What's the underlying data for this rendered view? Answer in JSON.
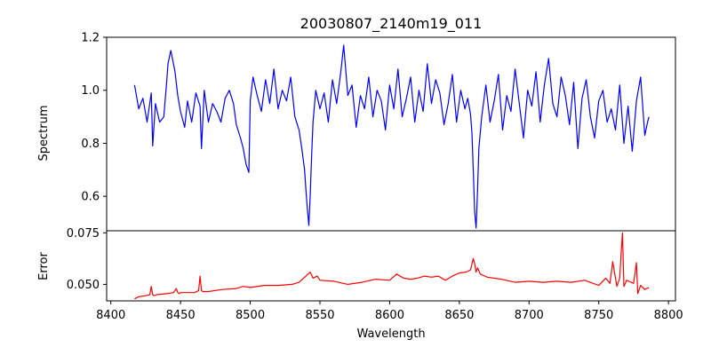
{
  "figure": {
    "title": "20030807_2140m19_011"
  },
  "chart_data": [
    {
      "type": "line",
      "panel": "top",
      "ylabel": "Spectrum",
      "xlabel": "",
      "xlim": [
        8397,
        8805
      ],
      "ylim": [
        0.47,
        1.2
      ],
      "yticks": [
        0.6,
        0.8,
        1.0,
        1.2
      ],
      "ytick_labels": [
        "0.6",
        "0.8",
        "1.0",
        "1.2"
      ],
      "series": [
        {
          "color": "#0000ff",
          "x": [
            8417,
            8420,
            8423,
            8426,
            8429,
            8430,
            8432,
            8435,
            8438,
            8440,
            8441,
            8443,
            8446,
            8448,
            8450,
            8453,
            8455,
            8458,
            8461,
            8464,
            8465,
            8467,
            8470,
            8473,
            8476,
            8479,
            8482,
            8485,
            8488,
            8490,
            8493,
            8495,
            8497,
            8499,
            8500,
            8502,
            8505,
            8508,
            8511,
            8514,
            8517,
            8520,
            8523,
            8526,
            8529,
            8532,
            8535,
            8537,
            8539,
            8540,
            8541,
            8542,
            8543,
            8544,
            8545,
            8547,
            8550,
            8553,
            8556,
            8559,
            8562,
            8565,
            8567,
            8570,
            8573,
            8576,
            8579,
            8582,
            8585,
            8588,
            8591,
            8594,
            8597,
            8600,
            8603,
            8606,
            8609,
            8612,
            8615,
            8618,
            8621,
            8624,
            8627,
            8630,
            8633,
            8636,
            8639,
            8642,
            8645,
            8648,
            8651,
            8654,
            8656,
            8658,
            8659,
            8660,
            8661,
            8662,
            8663,
            8664,
            8666,
            8669,
            8672,
            8675,
            8678,
            8681,
            8684,
            8687,
            8690,
            8693,
            8696,
            8699,
            8702,
            8705,
            8708,
            8711,
            8714,
            8717,
            8720,
            8723,
            8726,
            8729,
            8732,
            8735,
            8738,
            8741,
            8744,
            8747,
            8750,
            8753,
            8756,
            8759,
            8762,
            8765,
            8768,
            8771,
            8774,
            8777,
            8780,
            8783,
            8785,
            8786
          ],
          "y": [
            1.02,
            0.93,
            0.97,
            0.88,
            0.99,
            0.79,
            0.95,
            0.88,
            0.9,
            1.03,
            1.1,
            1.15,
            1.07,
            0.98,
            0.92,
            0.86,
            0.96,
            0.88,
            0.99,
            0.94,
            0.78,
            1.0,
            0.88,
            0.95,
            0.92,
            0.88,
            0.97,
            1.0,
            0.95,
            0.87,
            0.82,
            0.78,
            0.72,
            0.69,
            0.96,
            1.05,
            0.98,
            0.92,
            1.04,
            0.95,
            1.08,
            0.93,
            1.0,
            0.96,
            1.05,
            0.9,
            0.85,
            0.78,
            0.7,
            0.62,
            0.55,
            0.49,
            0.6,
            0.75,
            0.88,
            1.0,
            0.93,
            0.99,
            0.88,
            1.04,
            0.95,
            1.07,
            1.17,
            0.98,
            1.02,
            0.86,
            0.98,
            0.93,
            1.05,
            0.9,
            1.0,
            0.96,
            0.85,
            1.02,
            0.93,
            1.08,
            0.9,
            0.97,
            1.05,
            0.88,
            1.0,
            0.92,
            1.1,
            0.95,
            1.04,
            0.99,
            0.87,
            0.95,
            1.06,
            0.88,
            1.0,
            0.93,
            0.97,
            0.91,
            0.84,
            0.7,
            0.54,
            0.48,
            0.62,
            0.78,
            0.9,
            1.02,
            0.88,
            0.96,
            1.06,
            0.85,
            0.98,
            0.92,
            1.08,
            0.95,
            0.82,
            1.0,
            0.94,
            1.07,
            0.88,
            1.02,
            1.12,
            0.95,
            0.9,
            1.05,
            0.98,
            0.87,
            1.03,
            0.78,
            0.97,
            1.04,
            0.9,
            0.82,
            0.96,
            1.0,
            0.88,
            0.93,
            0.85,
            1.02,
            0.8,
            0.94,
            0.77,
            0.96,
            1.05,
            0.83,
            0.88,
            0.9
          ]
        }
      ]
    },
    {
      "type": "line",
      "panel": "bottom",
      "ylabel": "Error",
      "xlabel": "Wavelength",
      "xlim": [
        8397,
        8805
      ],
      "ylim": [
        0.042,
        0.076
      ],
      "yticks": [
        0.05,
        0.075
      ],
      "ytick_labels": [
        "0.050",
        "0.075"
      ],
      "xticks": [
        8400,
        8450,
        8500,
        8550,
        8600,
        8650,
        8700,
        8750,
        8800
      ],
      "xtick_labels": [
        "8400",
        "8450",
        "8500",
        "8550",
        "8600",
        "8650",
        "8700",
        "8750",
        "8800"
      ],
      "series": [
        {
          "color": "#ff0000",
          "x": [
            8417,
            8420,
            8425,
            8428,
            8429,
            8430,
            8431,
            8433,
            8440,
            8445,
            8447,
            8448,
            8449,
            8450,
            8455,
            8460,
            8463,
            8464,
            8465,
            8466,
            8470,
            8480,
            8490,
            8495,
            8500,
            8510,
            8520,
            8530,
            8535,
            8540,
            8543,
            8545,
            8548,
            8550,
            8560,
            8570,
            8580,
            8590,
            8600,
            8605,
            8610,
            8615,
            8620,
            8625,
            8630,
            8635,
            8640,
            8645,
            8650,
            8655,
            8658,
            8660,
            8661,
            8662,
            8663,
            8665,
            8670,
            8680,
            8690,
            8700,
            8710,
            8720,
            8730,
            8740,
            8750,
            8755,
            8758,
            8760,
            8763,
            8765,
            8766,
            8767,
            8768,
            8770,
            8775,
            8777,
            8778,
            8780,
            8783,
            8786
          ],
          "y": [
            0.043,
            0.044,
            0.0445,
            0.045,
            0.049,
            0.045,
            0.0445,
            0.045,
            0.0455,
            0.046,
            0.048,
            0.046,
            0.0455,
            0.046,
            0.046,
            0.046,
            0.047,
            0.054,
            0.047,
            0.0465,
            0.0465,
            0.0475,
            0.048,
            0.049,
            0.0485,
            0.0495,
            0.0495,
            0.05,
            0.051,
            0.054,
            0.056,
            0.053,
            0.054,
            0.052,
            0.0515,
            0.05,
            0.051,
            0.0525,
            0.052,
            0.055,
            0.053,
            0.0525,
            0.053,
            0.054,
            0.0535,
            0.054,
            0.052,
            0.054,
            0.0555,
            0.056,
            0.057,
            0.0625,
            0.06,
            0.056,
            0.058,
            0.055,
            0.0535,
            0.0525,
            0.051,
            0.0515,
            0.051,
            0.0515,
            0.051,
            0.052,
            0.0495,
            0.053,
            0.0505,
            0.061,
            0.049,
            0.053,
            0.0645,
            0.075,
            0.049,
            0.052,
            0.0505,
            0.0605,
            0.0455,
            0.0495,
            0.0475,
            0.0485
          ]
        }
      ]
    }
  ]
}
